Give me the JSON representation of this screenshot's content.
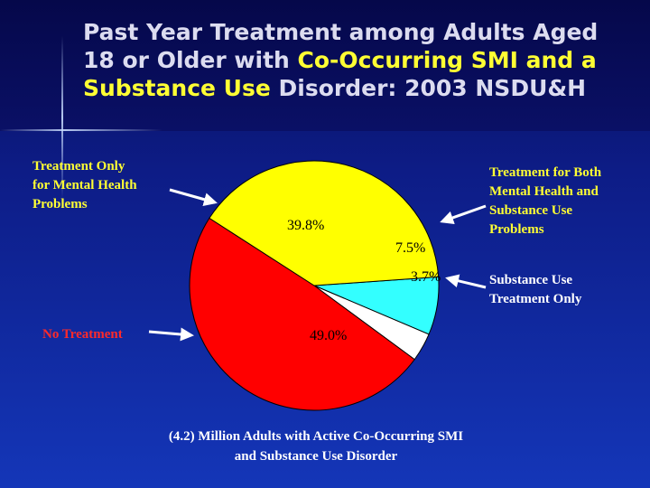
{
  "title": {
    "line1": "Past Year Treatment among Adults Aged",
    "line2_pre": "18 or Older with ",
    "line2_hl": "Co-Occurring SMI and a",
    "line3_hl": "Substance Use",
    "line3_post": " Disorder: 2003 NSDU&H"
  },
  "labels": {
    "mental_health": [
      "Treatment Only",
      "for Mental Health",
      "Problems"
    ],
    "both": [
      "Treatment for Both",
      "Mental Health and",
      "Substance Use",
      "Problems"
    ],
    "substance": [
      "Substance Use",
      "Treatment Only"
    ],
    "none": [
      "No Treatment"
    ]
  },
  "caption": [
    "(4.2) Million Adults with Active Co-Occurring SMI",
    "and Substance Use Disorder"
  ],
  "colors": {
    "mental_health": "#ffff00",
    "both": "#33ffff",
    "substance": "#ffffff",
    "none": "#ff0000",
    "arrow": "#ffffff"
  },
  "chart_data": {
    "type": "pie",
    "slices": [
      {
        "key": "both",
        "label": "Treatment for Both Mental Health and Substance Use Problems",
        "value": 7.5,
        "value_label": "7.5%"
      },
      {
        "key": "substance",
        "label": "Substance Use Treatment Only",
        "value": 3.7,
        "value_label": "3.7%"
      },
      {
        "key": "none",
        "label": "No Treatment",
        "value": 49.0,
        "value_label": "49.0%"
      },
      {
        "key": "mental_health",
        "label": "Treatment Only for Mental Health Problems",
        "value": 39.8,
        "value_label": "39.8%"
      }
    ],
    "unit": "%"
  }
}
